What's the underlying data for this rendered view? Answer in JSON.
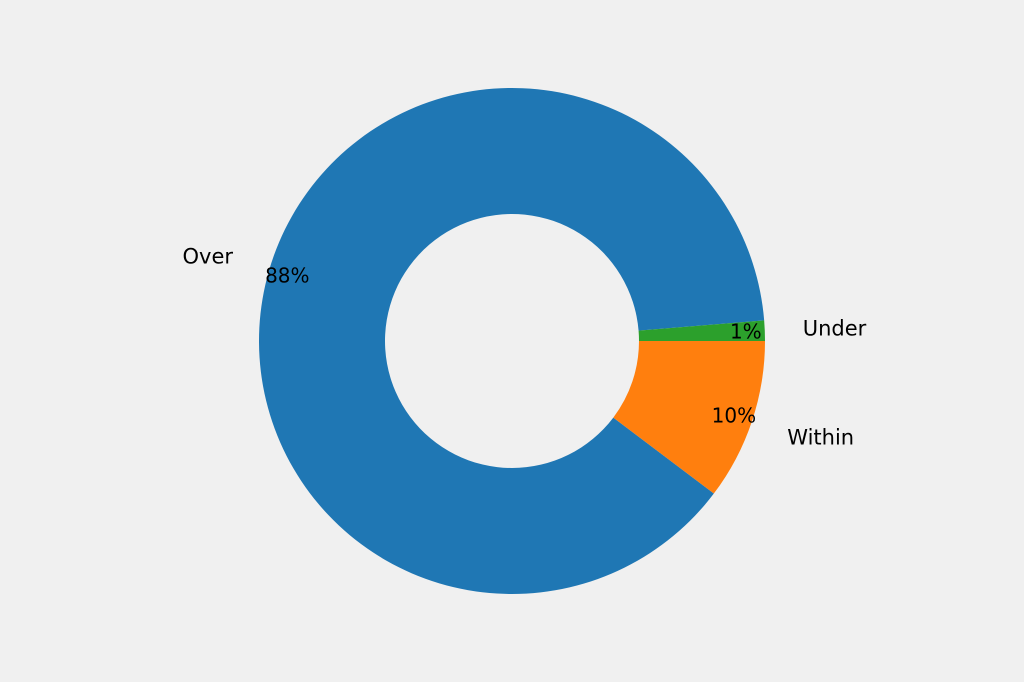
{
  "chart_data": {
    "type": "pie",
    "donut": true,
    "title": "",
    "categories": [
      "Over",
      "Within",
      "Under"
    ],
    "values": [
      88.4,
      10.3,
      1.3
    ],
    "value_labels": [
      "88%",
      "10%",
      "1%"
    ],
    "colors": [
      "#1f77b4",
      "#ff7f0e",
      "#2ca02c"
    ],
    "legend": "none"
  },
  "background": "#f0f0f0"
}
